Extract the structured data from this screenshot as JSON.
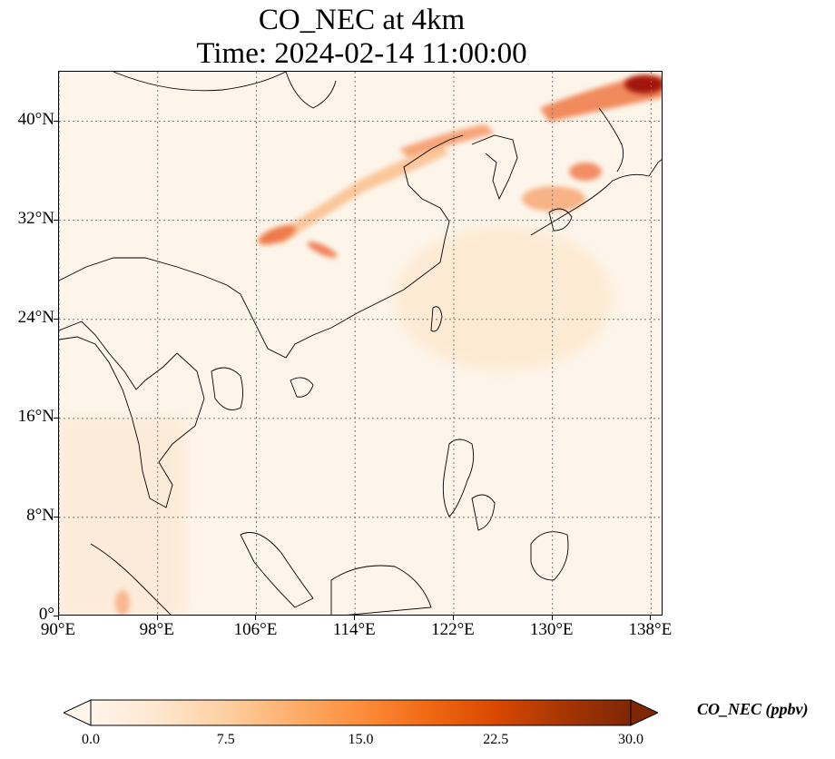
{
  "title": {
    "line1": "CO_NEC at 4km",
    "line2": "Time: 2024-02-14 11:00:00"
  },
  "map": {
    "lon_range": [
      90,
      139
    ],
    "lat_range": [
      0,
      44
    ],
    "gridlines": "dotted",
    "lat_ticks": [
      {
        "value": 40,
        "label": "40°N"
      },
      {
        "value": 32,
        "label": "32°N"
      },
      {
        "value": 24,
        "label": "24°N"
      },
      {
        "value": 16,
        "label": "16°N"
      },
      {
        "value": 8,
        "label": "8°N"
      },
      {
        "value": 0,
        "label": "0°"
      }
    ],
    "lon_ticks": [
      {
        "value": 90,
        "label": "90°E"
      },
      {
        "value": 98,
        "label": "98°E"
      },
      {
        "value": 106,
        "label": "106°E"
      },
      {
        "value": 114,
        "label": "114°E"
      },
      {
        "value": 122,
        "label": "122°E"
      },
      {
        "value": 130,
        "label": "130°E"
      },
      {
        "value": 138,
        "label": "138°E"
      }
    ]
  },
  "colorbar": {
    "label": "CO_NEC (ppbv)",
    "min": 0.0,
    "max": 30.0,
    "extend": "both",
    "ticks": [
      "0.0",
      "7.5",
      "15.0",
      "22.5",
      "30.0"
    ],
    "colormap": [
      "#fff5eb",
      "#fee6ce",
      "#fdd0a2",
      "#fdae6b",
      "#fd8d3c",
      "#f16913",
      "#d94801",
      "#a63603",
      "#7f2704"
    ]
  }
}
